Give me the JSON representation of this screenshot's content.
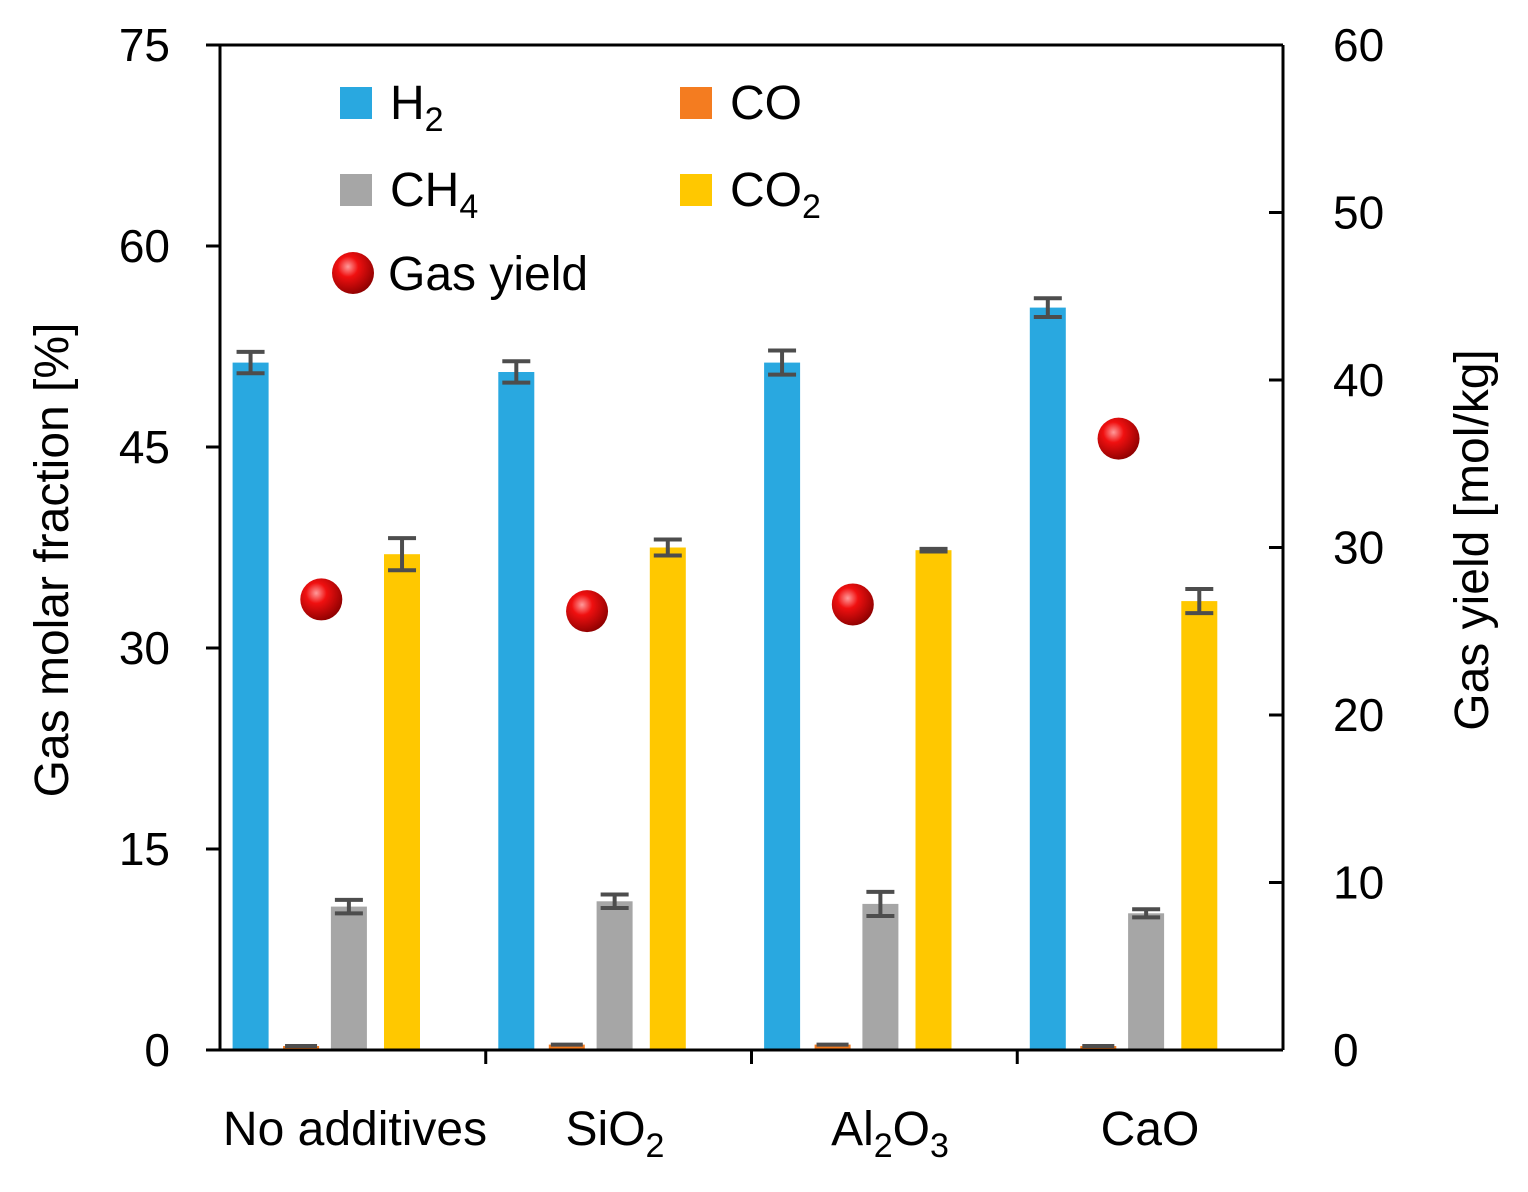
{
  "chart_data": {
    "type": "bar",
    "categories": [
      {
        "base": "No additives",
        "parts": [
          {
            "t": "No additives",
            "sub": false
          }
        ]
      },
      {
        "base": "SiO2",
        "parts": [
          {
            "t": "SiO",
            "sub": false
          },
          {
            "t": "2",
            "sub": true
          }
        ]
      },
      {
        "base": "Al2O3",
        "parts": [
          {
            "t": "Al",
            "sub": false
          },
          {
            "t": "2",
            "sub": true
          },
          {
            "t": "O",
            "sub": false
          },
          {
            "t": "3",
            "sub": true
          }
        ]
      },
      {
        "base": "CaO",
        "parts": [
          {
            "t": "CaO",
            "sub": false
          }
        ]
      }
    ],
    "series": [
      {
        "name": "H2",
        "parts": [
          {
            "t": "H",
            "sub": false
          },
          {
            "t": "2",
            "sub": true
          }
        ],
        "color": "#29A8E0",
        "values": [
          51.3,
          50.6,
          51.3,
          55.4
        ],
        "errors": [
          0.8,
          0.8,
          0.9,
          0.7
        ]
      },
      {
        "name": "CO",
        "parts": [
          {
            "t": "CO",
            "sub": false
          }
        ],
        "color": "#F47C20",
        "values": [
          0.3,
          0.4,
          0.4,
          0.3
        ],
        "errors": [
          0,
          0,
          0,
          0
        ]
      },
      {
        "name": "CH4",
        "parts": [
          {
            "t": "CH",
            "sub": false
          },
          {
            "t": "4",
            "sub": true
          }
        ],
        "color": "#A6A6A6",
        "values": [
          10.7,
          11.1,
          10.9,
          10.2
        ],
        "errors": [
          0.5,
          0.5,
          0.9,
          0.3
        ]
      },
      {
        "name": "CO2",
        "parts": [
          {
            "t": "CO",
            "sub": false
          },
          {
            "t": "2",
            "sub": true
          }
        ],
        "color": "#FFC800",
        "values": [
          37.0,
          37.5,
          37.3,
          33.5
        ],
        "errors": [
          1.2,
          0.6,
          0.1,
          0.9
        ]
      }
    ],
    "gas_yield": {
      "name": "Gas yield",
      "color": "#E00000",
      "values": [
        26.9,
        26.2,
        26.6,
        36.5
      ]
    },
    "ylabel": "Gas molar fraction [%]",
    "y2label": "Gas yield [mol/kg]",
    "ylim": [
      0,
      75
    ],
    "y2lim": [
      0,
      60
    ],
    "yticks": [
      0,
      15,
      30,
      45,
      60,
      75
    ],
    "y2ticks": [
      0,
      10,
      20,
      30,
      40,
      50,
      60
    ],
    "legend_position": "top-left",
    "grid": false
  }
}
